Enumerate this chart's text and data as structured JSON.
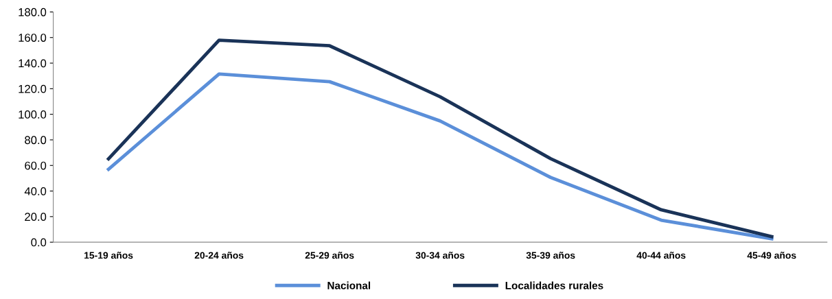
{
  "chart_data": {
    "type": "line",
    "categories": [
      "15-19 años",
      "20-24 años",
      "25-29 años",
      "30-34 años",
      "35-39 años",
      "40-44 años",
      "45-49 años"
    ],
    "series": [
      {
        "name": "Nacional",
        "color": "#5b8fd9",
        "values": [
          57.0,
          131.5,
          125.5,
          94.8,
          50.6,
          17.2,
          2.7
        ]
      },
      {
        "name": "Localidades rurales",
        "color": "#1a3358",
        "values": [
          65.2,
          157.9,
          153.6,
          113.7,
          65.3,
          25.3,
          4.3
        ]
      }
    ],
    "ylim": [
      0,
      180
    ],
    "yticks": [
      {
        "value": 0,
        "label": "0.0"
      },
      {
        "value": 20,
        "label": "20.0"
      },
      {
        "value": 40,
        "label": "40.0"
      },
      {
        "value": 60,
        "label": "60.0"
      },
      {
        "value": 80,
        "label": "80.0"
      },
      {
        "value": 100,
        "label": "100.0"
      },
      {
        "value": 120,
        "label": "120.0"
      },
      {
        "value": 140,
        "label": "140.0"
      },
      {
        "value": 160,
        "label": "160.0"
      },
      {
        "value": 180,
        "label": "180.0"
      }
    ],
    "grid": false,
    "legend": "bottom",
    "marker": "none",
    "line_style": "solid"
  }
}
